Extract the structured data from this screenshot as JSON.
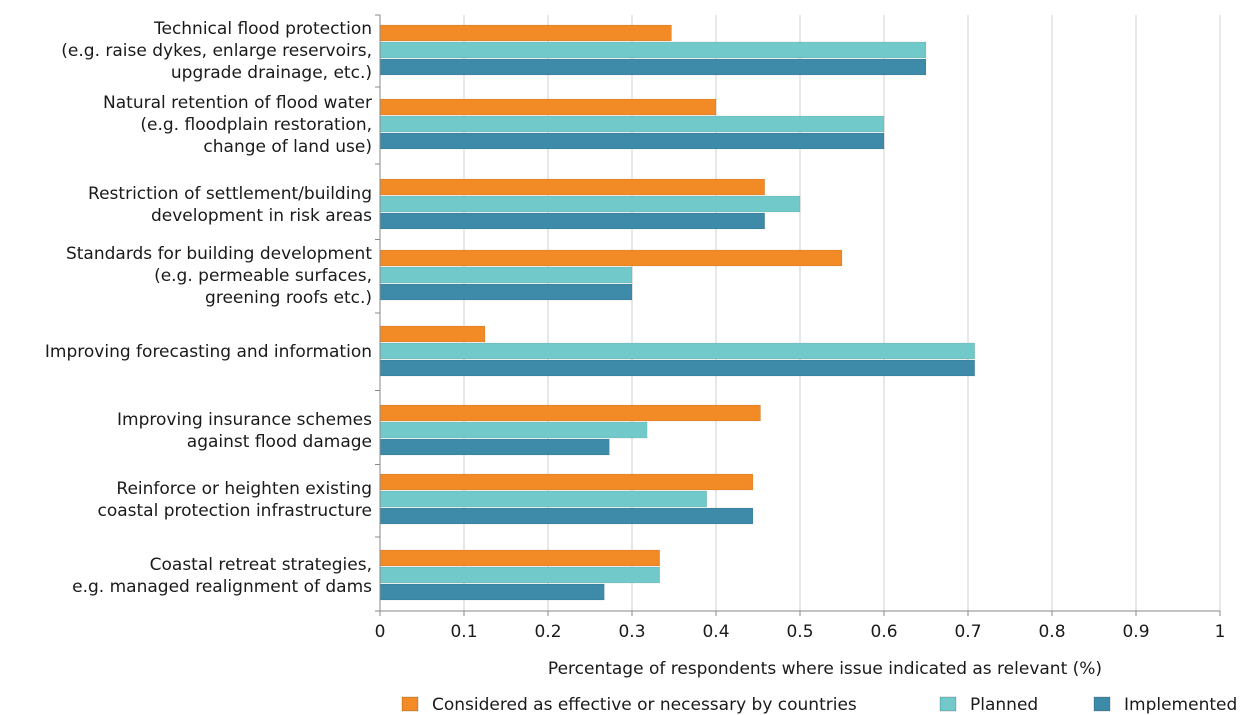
{
  "chart_data": {
    "type": "bar",
    "orientation": "horizontal",
    "categories": [
      [
        "Technical flood protection",
        "(e.g. raise dykes, enlarge reservoirs,",
        "upgrade drainage, etc.)"
      ],
      [
        "Natural retention of flood water",
        "(e.g. floodplain restoration,",
        "change of land use)"
      ],
      [
        "Restriction of settlement/building",
        "development in risk areas"
      ],
      [
        "Standards for building development",
        "(e.g. permeable surfaces,",
        "greening roofs etc.)"
      ],
      [
        "Improving forecasting and information"
      ],
      [
        "Improving insurance schemes",
        "against flood damage"
      ],
      [
        "Reinforce or heighten existing",
        "coastal protection infrastructure"
      ],
      [
        "Coastal retreat strategies,",
        "e.g. managed realignment of dams"
      ]
    ],
    "series": [
      {
        "name": "Considered as effective or necessary by countries",
        "color": "#f28a25",
        "values": [
          0.347,
          0.4,
          0.458,
          0.55,
          0.125,
          0.453,
          0.444,
          0.333
        ]
      },
      {
        "name": "Planned",
        "color": "#72c9c9",
        "values": [
          0.65,
          0.6,
          0.5,
          0.3,
          0.708,
          0.318,
          0.389,
          0.333
        ]
      },
      {
        "name": "Implemented",
        "color": "#3d8ba8",
        "values": [
          0.65,
          0.6,
          0.458,
          0.3,
          0.708,
          0.273,
          0.444,
          0.267
        ]
      }
    ],
    "xlim": [
      0,
      1
    ],
    "xticks": [
      "0",
      "0.1",
      "0.2",
      "0.3",
      "0.4",
      "0.5",
      "0.6",
      "0.7",
      "0.8",
      "0.9",
      "1"
    ],
    "xlabel": "Percentage of respondents where issue indicated as relevant (%)",
    "ylabel": "",
    "title": "",
    "grid": "vertical",
    "legend_position": "bottom"
  }
}
